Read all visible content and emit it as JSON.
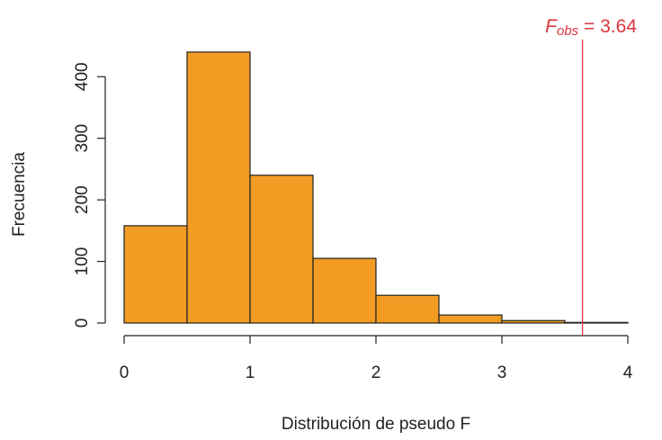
{
  "chart_data": {
    "type": "bar",
    "xlabel": "Distribución de pseudo F",
    "ylabel": "Frecuencia",
    "xlim": [
      0,
      4
    ],
    "ylim": [
      0,
      400
    ],
    "x_ticks": [
      "0",
      "1",
      "2",
      "3",
      "4"
    ],
    "y_ticks": [
      "0",
      "100",
      "200",
      "300",
      "400"
    ],
    "bins": [
      {
        "start": 0.0,
        "end": 0.5,
        "value": 158
      },
      {
        "start": 0.5,
        "end": 1.0,
        "value": 440
      },
      {
        "start": 1.0,
        "end": 1.5,
        "value": 240
      },
      {
        "start": 1.5,
        "end": 2.0,
        "value": 105
      },
      {
        "start": 2.0,
        "end": 2.5,
        "value": 45
      },
      {
        "start": 2.5,
        "end": 3.0,
        "value": 13
      },
      {
        "start": 3.0,
        "end": 3.5,
        "value": 4
      },
      {
        "start": 3.5,
        "end": 4.0,
        "value": 1
      }
    ],
    "reference_line": {
      "x": 3.64,
      "label_symbol": "F",
      "label_subscript": "obs",
      "label_suffix": "= 3.64"
    },
    "colors": {
      "bar_fill": "#F29C24",
      "bar_stroke": "#222222",
      "reference_line": "#D9363E",
      "axis": "#222222"
    },
    "grid": false
  }
}
